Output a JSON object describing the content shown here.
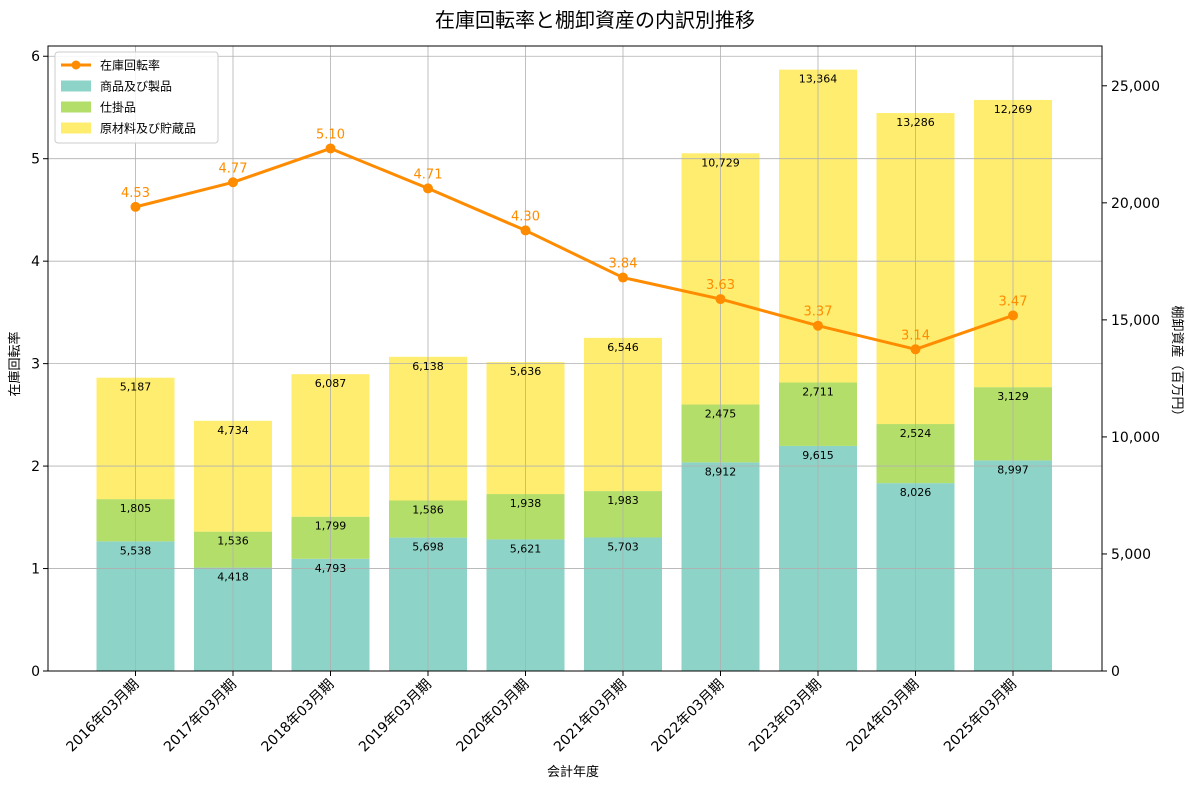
{
  "chart_data": {
    "type": "bar",
    "title": "在庫回転率と棚卸資産の内訳別推移",
    "xlabel": "会計年度",
    "ylabel": "在庫回転率",
    "y2label": "棚卸資産（百万円）",
    "categories": [
      "2016年03月期",
      "2017年03月期",
      "2018年03月期",
      "2019年03月期",
      "2020年03月期",
      "2021年03月期",
      "2022年03月期",
      "2023年03月期",
      "2024年03月期",
      "2025年03月期"
    ],
    "ylim": [
      0,
      6.1
    ],
    "y_ticks": [
      "0",
      "1",
      "2",
      "3",
      "4",
      "5",
      "6"
    ],
    "y2lim": [
      0,
      26700
    ],
    "y2_ticks": [
      "0",
      "5,000",
      "10,000",
      "15,000",
      "20,000",
      "25,000"
    ],
    "grid": true,
    "legend_position": "top-left",
    "series": [
      {
        "name": "商品及び製品",
        "kind": "bar",
        "color": "#8dd3c7",
        "values": [
          5538,
          4418,
          4793,
          5698,
          5621,
          5703,
          8912,
          9615,
          8026,
          8997
        ],
        "labels": [
          "5,538",
          "4,418",
          "4,793",
          "5,698",
          "5,621",
          "5,703",
          "8,912",
          "9,615",
          "8,026",
          "8,997"
        ]
      },
      {
        "name": "仕掛品",
        "kind": "bar",
        "color": "#b3de69",
        "values": [
          1805,
          1536,
          1799,
          1586,
          1938,
          1983,
          2475,
          2711,
          2524,
          3129
        ],
        "labels": [
          "1,805",
          "1,536",
          "1,799",
          "1,586",
          "1,938",
          "1,983",
          "2,475",
          "2,711",
          "2,524",
          "3,129"
        ]
      },
      {
        "name": "原材料及び貯蔵品",
        "kind": "bar",
        "color": "#ffed6f",
        "values": [
          5187,
          4734,
          6087,
          6138,
          5636,
          6546,
          10729,
          13364,
          13286,
          12269
        ],
        "labels": [
          "5,187",
          "4,734",
          "6,087",
          "6,138",
          "5,636",
          "6,546",
          "10,729",
          "13,364",
          "13,286",
          "12,269"
        ]
      }
    ],
    "line": {
      "name": "在庫回転率",
      "color": "#ff8c00",
      "values": [
        4.53,
        4.77,
        5.1,
        4.71,
        4.3,
        3.84,
        3.63,
        3.37,
        3.14,
        3.47
      ],
      "labels": [
        "4.53",
        "4.77",
        "5.10",
        "4.71",
        "4.30",
        "3.84",
        "3.63",
        "3.37",
        "3.14",
        "3.47"
      ]
    }
  }
}
